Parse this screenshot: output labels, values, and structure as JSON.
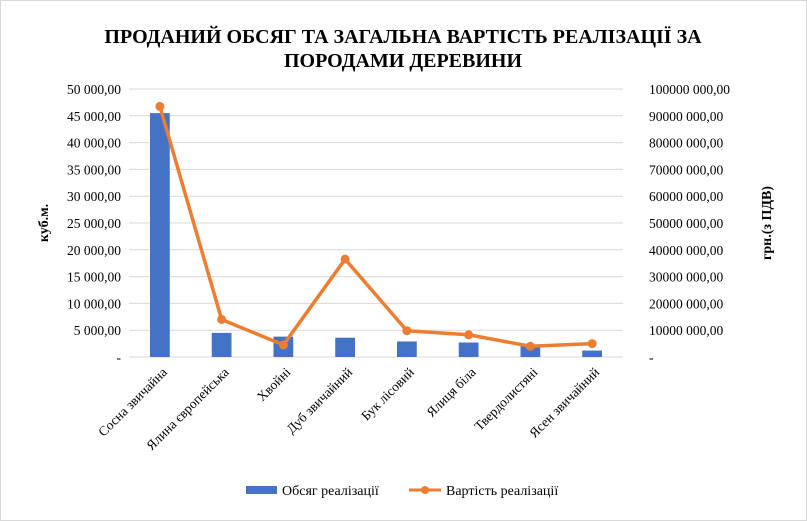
{
  "chart_data": {
    "type": "bar-line-combo",
    "title_lines": [
      "ПРОДАНИЙ ОБСЯГ ТА ЗАГАЛЬНА ВАРТІСТЬ РЕАЛІЗАЦІЇ ЗА",
      "ПОРОДАМИ ДЕРЕВИНИ"
    ],
    "categories": [
      "Сосна звичайна",
      "Ялина європейська",
      "Хвойні",
      "Дуб звичайний",
      "Бук лісовий",
      "Ялиця біла",
      "Твердолистяні",
      "Ясен звичайний"
    ],
    "series": [
      {
        "name": "Обсяг реалізації",
        "type": "bar",
        "axis": "left",
        "color": "#4472c4",
        "values": [
          45500,
          4500,
          3800,
          3600,
          2900,
          2700,
          2000,
          1200
        ]
      },
      {
        "name": "Вартість реалізації",
        "type": "line",
        "axis": "right",
        "color": "#ed7d31",
        "values": [
          93500000,
          14000000,
          4500000,
          36500000,
          9800000,
          8300000,
          4000000,
          5000000
        ]
      }
    ],
    "y_left": {
      "label": "куб.м.",
      "min": 0,
      "max": 50000,
      "ticks": [
        0,
        5000,
        10000,
        15000,
        20000,
        25000,
        30000,
        35000,
        40000,
        45000,
        50000
      ],
      "tick_labels": [
        "-",
        "5 000,00",
        "10 000,00",
        "15 000,00",
        "20 000,00",
        "25 000,00",
        "30 000,00",
        "35 000,00",
        "40 000,00",
        "45 000,00",
        "50 000,00"
      ]
    },
    "y_right": {
      "label": "грн.(з ПДВ)",
      "min": 0,
      "max": 100000000,
      "ticks": [
        0,
        10000000,
        20000000,
        30000000,
        40000000,
        50000000,
        60000000,
        70000000,
        80000000,
        90000000,
        100000000
      ],
      "tick_labels": [
        "-",
        "10000 000,00",
        "20000 000,00",
        "30000 000,00",
        "40000 000,00",
        "50000 000,00",
        "60000 000,00",
        "70000 000,00",
        "80000 000,00",
        "90000 000,00",
        "100000 000,00"
      ]
    },
    "grid": true,
    "legend_position": "bottom"
  }
}
